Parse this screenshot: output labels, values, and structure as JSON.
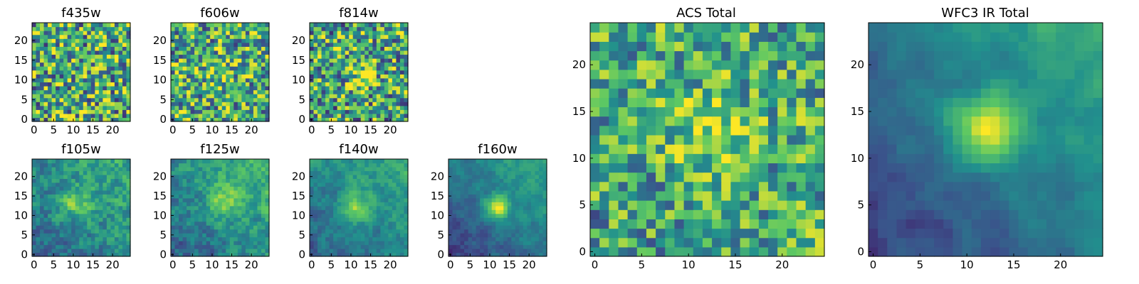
{
  "figure": {
    "colormap": "viridis",
    "palette": [
      "#440154",
      "#3b528b",
      "#21908d",
      "#5dc863",
      "#fde725"
    ],
    "panels": [
      {
        "id": "f435w",
        "title": "f435w"
      },
      {
        "id": "f606w",
        "title": "f606w"
      },
      {
        "id": "f814w",
        "title": "f814w"
      },
      {
        "id": "f105w",
        "title": "f105w"
      },
      {
        "id": "f125w",
        "title": "f125w"
      },
      {
        "id": "f140w",
        "title": "f140w"
      },
      {
        "id": "f160w",
        "title": "f160w"
      },
      {
        "id": "acs_total",
        "title": "ACS Total"
      },
      {
        "id": "wfc3_total",
        "title": "WFC3 IR Total"
      }
    ]
  },
  "chart_data": [
    {
      "type": "heatmap",
      "title": "f435w",
      "grid": [
        25,
        25
      ],
      "xlim": [
        0,
        25
      ],
      "ylim": [
        0,
        25
      ],
      "x_ticks": [
        "0",
        "5",
        "10",
        "15",
        "20"
      ],
      "y_ticks": [
        "0",
        "5",
        "10",
        "15",
        "20"
      ]
    },
    {
      "type": "heatmap",
      "title": "f606w",
      "grid": [
        25,
        25
      ],
      "xlim": [
        0,
        25
      ],
      "ylim": [
        0,
        25
      ],
      "x_ticks": [
        "0",
        "5",
        "10",
        "15",
        "20"
      ],
      "y_ticks": [
        "0",
        "5",
        "10",
        "15",
        "20"
      ]
    },
    {
      "type": "heatmap",
      "title": "f814w",
      "grid": [
        25,
        25
      ],
      "xlim": [
        0,
        25
      ],
      "ylim": [
        0,
        25
      ],
      "x_ticks": [
        "0",
        "5",
        "10",
        "15",
        "20"
      ],
      "y_ticks": [
        "0",
        "5",
        "10",
        "15",
        "20"
      ]
    },
    {
      "type": "heatmap",
      "title": "f105w",
      "grid": [
        25,
        25
      ],
      "xlim": [
        0,
        25
      ],
      "ylim": [
        0,
        25
      ],
      "x_ticks": [
        "0",
        "5",
        "10",
        "15",
        "20"
      ],
      "y_ticks": [
        "0",
        "5",
        "10",
        "15",
        "20"
      ]
    },
    {
      "type": "heatmap",
      "title": "f125w",
      "grid": [
        25,
        25
      ],
      "xlim": [
        0,
        25
      ],
      "ylim": [
        0,
        25
      ],
      "x_ticks": [
        "0",
        "5",
        "10",
        "15",
        "20"
      ],
      "y_ticks": [
        "0",
        "5",
        "10",
        "15",
        "20"
      ]
    },
    {
      "type": "heatmap",
      "title": "f140w",
      "grid": [
        25,
        25
      ],
      "xlim": [
        0,
        25
      ],
      "ylim": [
        0,
        25
      ],
      "x_ticks": [
        "0",
        "5",
        "10",
        "15",
        "20"
      ],
      "y_ticks": [
        "0",
        "5",
        "10",
        "15",
        "20"
      ]
    },
    {
      "type": "heatmap",
      "title": "f160w",
      "grid": [
        25,
        25
      ],
      "xlim": [
        0,
        25
      ],
      "ylim": [
        0,
        25
      ],
      "x_ticks": [
        "0",
        "5",
        "10",
        "15",
        "20"
      ],
      "y_ticks": [
        "0",
        "5",
        "10",
        "15",
        "20"
      ]
    },
    {
      "type": "heatmap",
      "title": "ACS Total",
      "grid": [
        25,
        25
      ],
      "xlim": [
        0,
        25
      ],
      "ylim": [
        0,
        25
      ],
      "x_ticks": [
        "0",
        "5",
        "10",
        "15",
        "20"
      ],
      "y_ticks": [
        "0",
        "5",
        "10",
        "15",
        "20"
      ]
    },
    {
      "type": "heatmap",
      "title": "WFC3 IR Total",
      "grid": [
        25,
        25
      ],
      "xlim": [
        0,
        25
      ],
      "ylim": [
        0,
        25
      ],
      "x_ticks": [
        "0",
        "5",
        "10",
        "15",
        "20"
      ],
      "y_ticks": [
        "0",
        "5",
        "10",
        "15",
        "20"
      ]
    }
  ]
}
